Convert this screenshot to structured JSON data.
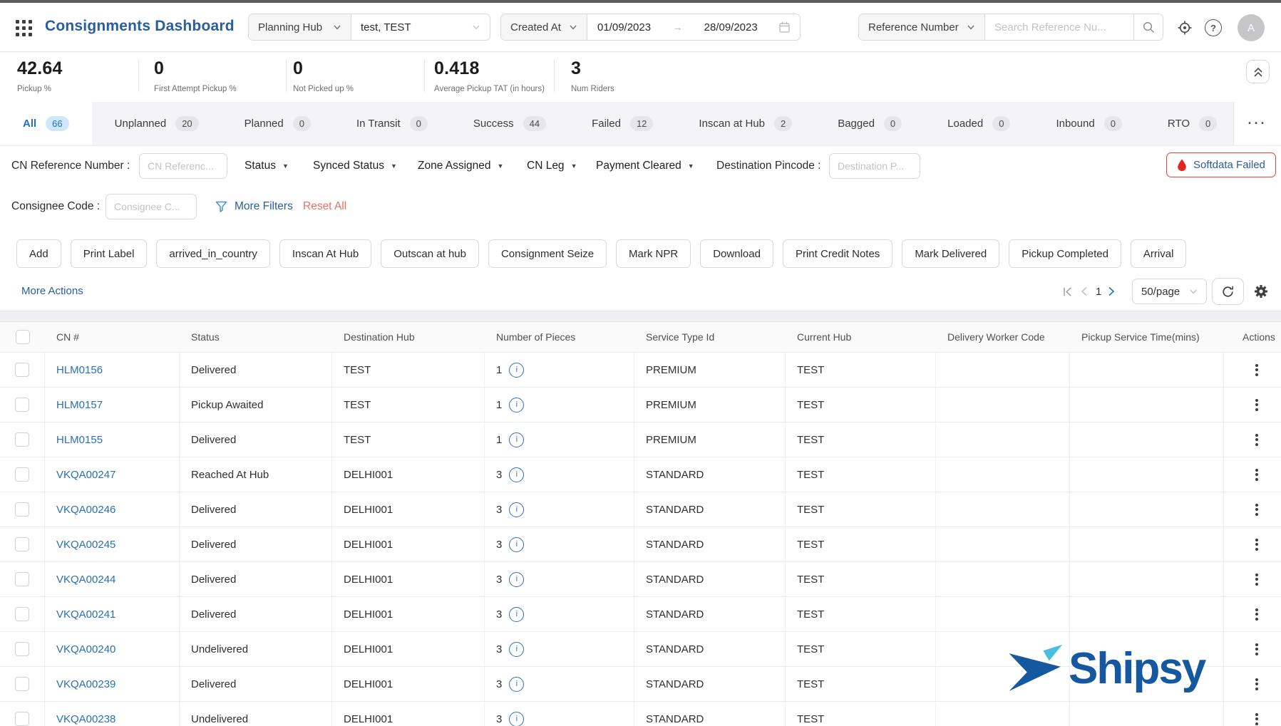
{
  "header": {
    "title": "Consignments Dashboard",
    "hub_filter": {
      "label": "Planning Hub",
      "value": "test, TEST"
    },
    "date_filter": {
      "label": "Created At",
      "from": "01/09/2023",
      "to": "28/09/2023"
    },
    "search": {
      "label": "Reference Number",
      "placeholder": "Search Reference Nu..."
    },
    "avatar_initial": "A"
  },
  "stats": [
    {
      "value": "42.64",
      "label": "Pickup %"
    },
    {
      "value": "0",
      "label": "First Attempt Pickup %"
    },
    {
      "value": "0",
      "label": "Not Picked up %"
    },
    {
      "value": "0.418",
      "label": "Average Pickup TAT (in hours)"
    },
    {
      "value": "3",
      "label": "Num Riders"
    }
  ],
  "tabs": [
    {
      "label": "All",
      "count": "66",
      "active": true
    },
    {
      "label": "Unplanned",
      "count": "20"
    },
    {
      "label": "Planned",
      "count": "0"
    },
    {
      "label": "In Transit",
      "count": "0"
    },
    {
      "label": "Success",
      "count": "44"
    },
    {
      "label": "Failed",
      "count": "12"
    },
    {
      "label": "Inscan at Hub",
      "count": "2"
    },
    {
      "label": "Bagged",
      "count": "0"
    },
    {
      "label": "Loaded",
      "count": "0"
    },
    {
      "label": "Inbound",
      "count": "0"
    },
    {
      "label": "RTO",
      "count": "0"
    }
  ],
  "more_tabs_label": "···",
  "filters": {
    "cn_ref": {
      "label": "CN Reference Number :",
      "placeholder": "CN Referenc..."
    },
    "dropdowns": [
      "Status",
      "Synced Status",
      "Zone Assigned",
      "CN Leg",
      "Payment Cleared"
    ],
    "dest_pincode": {
      "label": "Destination Pincode :",
      "placeholder": "Destination P..."
    },
    "softdata_failed": "Softdata Failed",
    "consignee": {
      "label": "Consignee Code :",
      "placeholder": "Consignee C..."
    },
    "more_filters": "More Filters",
    "reset_all": "Reset All"
  },
  "actions": [
    "Add",
    "Print Label",
    "arrived_in_country",
    "Inscan At Hub",
    "Outscan at hub",
    "Consignment Seize",
    "Mark NPR",
    "Download",
    "Print Credit Notes",
    "Mark Delivered",
    "Pickup Completed",
    "Arrival"
  ],
  "toolbar": {
    "more_actions": "More Actions",
    "page": "1",
    "page_size": "50/page"
  },
  "table": {
    "columns": [
      "CN #",
      "Status",
      "Destination Hub",
      "Number of Pieces",
      "Service Type Id",
      "Current Hub",
      "Delivery Worker Code",
      "Pickup Service Time(mins)",
      "Actions"
    ],
    "rows": [
      {
        "cn": "HLM0156",
        "status": "Delivered",
        "destination_hub": "TEST",
        "pieces": "1",
        "service_type": "PREMIUM",
        "current_hub": "TEST"
      },
      {
        "cn": "HLM0157",
        "status": "Pickup Awaited",
        "destination_hub": "TEST",
        "pieces": "1",
        "service_type": "PREMIUM",
        "current_hub": "TEST"
      },
      {
        "cn": "HLM0155",
        "status": "Delivered",
        "destination_hub": "TEST",
        "pieces": "1",
        "service_type": "PREMIUM",
        "current_hub": "TEST"
      },
      {
        "cn": "VKQA00247",
        "status": "Reached At Hub",
        "destination_hub": "DELHI001",
        "pieces": "3",
        "service_type": "STANDARD",
        "current_hub": "TEST"
      },
      {
        "cn": "VKQA00246",
        "status": "Delivered",
        "destination_hub": "DELHI001",
        "pieces": "3",
        "service_type": "STANDARD",
        "current_hub": "TEST"
      },
      {
        "cn": "VKQA00245",
        "status": "Delivered",
        "destination_hub": "DELHI001",
        "pieces": "3",
        "service_type": "STANDARD",
        "current_hub": "TEST"
      },
      {
        "cn": "VKQA00244",
        "status": "Delivered",
        "destination_hub": "DELHI001",
        "pieces": "3",
        "service_type": "STANDARD",
        "current_hub": "TEST"
      },
      {
        "cn": "VKQA00241",
        "status": "Delivered",
        "destination_hub": "DELHI001",
        "pieces": "3",
        "service_type": "STANDARD",
        "current_hub": "TEST"
      },
      {
        "cn": "VKQA00240",
        "status": "Undelivered",
        "destination_hub": "DELHI001",
        "pieces": "3",
        "service_type": "STANDARD",
        "current_hub": "TEST"
      },
      {
        "cn": "VKQA00239",
        "status": "Delivered",
        "destination_hub": "DELHI001",
        "pieces": "3",
        "service_type": "STANDARD",
        "current_hub": "TEST"
      },
      {
        "cn": "VKQA00238",
        "status": "Undelivered",
        "destination_hub": "DELHI001",
        "pieces": "3",
        "service_type": "STANDARD",
        "current_hub": "TEST"
      }
    ]
  },
  "watermark": {
    "text": "Shipsy"
  },
  "colors": {
    "title_blue": "#2a5d9b",
    "link_blue": "#2a6fb5",
    "brand_blue": "#15589f",
    "brand_light_blue": "#49bfe0",
    "danger_red": "#e2453c",
    "reset_red": "#ef6e64",
    "active_badge_bg": "#cfe7fb",
    "badge_bg": "#e6e5e8",
    "tabbar_bg": "#f4f3f5"
  }
}
